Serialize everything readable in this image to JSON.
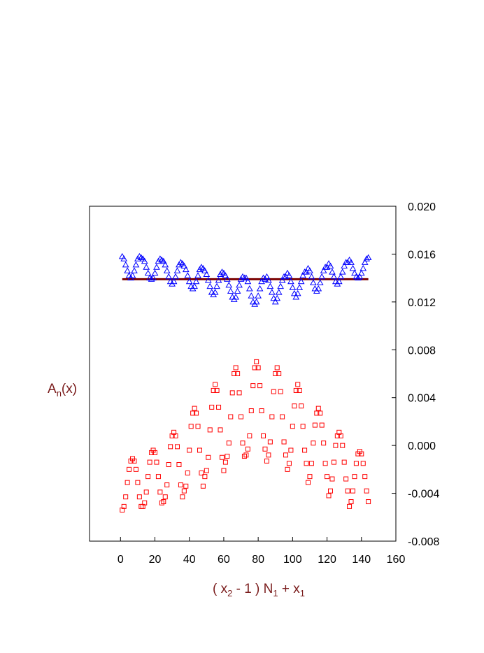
{
  "chart_data": {
    "type": "scatter",
    "xlabel": {
      "pre": "( x",
      "sub1": "2",
      "mid": " - 1 ) N",
      "sub2": "1",
      "mid2": " + x",
      "sub3": "1"
    },
    "ylabel": {
      "base": "A",
      "sub": "n",
      "tail": "(x)"
    },
    "xlim": [
      -18,
      160
    ],
    "ylim": [
      -0.008,
      0.02
    ],
    "x_ticks": [
      0,
      20,
      40,
      60,
      80,
      100,
      120,
      140,
      160
    ],
    "x_tick_labels": [
      "0",
      "20",
      "40",
      "60",
      "80",
      "100",
      "120",
      "140",
      "160"
    ],
    "y_ticks": [
      -0.008,
      -0.004,
      0.0,
      0.004,
      0.008,
      0.012,
      0.016,
      0.02
    ],
    "y_tick_labels": [
      "-0.008",
      "-0.004",
      "0.000",
      "0.004",
      "0.008",
      "0.012",
      "0.016",
      "0.020"
    ],
    "y_axis_side": "right",
    "grid": false,
    "reference_line": {
      "y": 0.0139,
      "x_range": [
        1,
        144
      ],
      "color": "#7a0000"
    },
    "series": [
      {
        "marker": "triangle",
        "color": "#0000ff",
        "values": [
          0.0158,
          0.0156,
          0.0151,
          0.0146,
          0.0142,
          0.014,
          0.0142,
          0.0146,
          0.0151,
          0.0156,
          0.0158,
          0.0157,
          0.0156,
          0.0154,
          0.0149,
          0.0144,
          0.014,
          0.0139,
          0.014,
          0.0144,
          0.0149,
          0.0154,
          0.0156,
          0.0155,
          0.0154,
          0.0151,
          0.0146,
          0.0141,
          0.0137,
          0.0135,
          0.0137,
          0.0141,
          0.0146,
          0.0151,
          0.0153,
          0.0152,
          0.015,
          0.0147,
          0.0142,
          0.0137,
          0.0133,
          0.0131,
          0.0133,
          0.0137,
          0.0142,
          0.0147,
          0.0149,
          0.0148,
          0.0146,
          0.0143,
          0.0138,
          0.0133,
          0.0128,
          0.0126,
          0.0128,
          0.0133,
          0.0138,
          0.0143,
          0.0145,
          0.0144,
          0.0142,
          0.0139,
          0.0134,
          0.0129,
          0.0124,
          0.0122,
          0.0124,
          0.0129,
          0.0134,
          0.0139,
          0.0141,
          0.014,
          0.014,
          0.0137,
          0.0131,
          0.0125,
          0.012,
          0.0118,
          0.012,
          0.0125,
          0.0131,
          0.0137,
          0.014,
          0.0139,
          0.0141,
          0.0138,
          0.0133,
          0.0128,
          0.0123,
          0.012,
          0.0123,
          0.0128,
          0.0133,
          0.0138,
          0.0141,
          0.0141,
          0.0144,
          0.0142,
          0.0137,
          0.0132,
          0.0127,
          0.0124,
          0.0127,
          0.0132,
          0.0137,
          0.0142,
          0.0145,
          0.0145,
          0.0148,
          0.0146,
          0.0141,
          0.0136,
          0.0131,
          0.0129,
          0.0131,
          0.0136,
          0.0141,
          0.0146,
          0.0149,
          0.0149,
          0.0152,
          0.015,
          0.0145,
          0.0141,
          0.0137,
          0.0135,
          0.0137,
          0.0141,
          0.0145,
          0.015,
          0.0153,
          0.0153,
          0.0155,
          0.0153,
          0.0148,
          0.0144,
          0.0141,
          0.014,
          0.0141,
          0.0144,
          0.0148,
          0.0153,
          0.0156,
          0.0157
        ]
      },
      {
        "marker": "square",
        "color": "#ff0000",
        "values": [
          -0.0054,
          -0.0051,
          -0.0043,
          -0.0031,
          -0.002,
          -0.0013,
          -0.0011,
          -0.0013,
          -0.002,
          -0.0031,
          -0.0043,
          -0.0051,
          -0.0051,
          -0.0048,
          -0.0039,
          -0.0026,
          -0.0014,
          -0.0006,
          -0.0004,
          -0.0006,
          -0.0014,
          -0.0026,
          -0.0039,
          -0.0048,
          -0.0047,
          -0.0043,
          -0.0033,
          -0.0016,
          -0.0001,
          0.0008,
          0.0011,
          0.0008,
          -0.0001,
          -0.0016,
          -0.0033,
          -0.0043,
          -0.0038,
          -0.0034,
          -0.0023,
          -0.0004,
          0.0016,
          0.0027,
          0.0031,
          0.0027,
          0.0016,
          -0.0004,
          -0.0023,
          -0.0034,
          -0.0026,
          -0.0021,
          -0.001,
          0.0013,
          0.0032,
          0.0046,
          0.0051,
          0.0046,
          0.0032,
          0.0013,
          -0.001,
          -0.0021,
          -0.0014,
          -0.0009,
          0.0002,
          0.0024,
          0.0044,
          0.006,
          0.0065,
          0.006,
          0.0044,
          0.0024,
          0.0002,
          -0.0009,
          -0.0008,
          -0.0003,
          0.0008,
          0.0029,
          0.005,
          0.0065,
          0.007,
          0.0065,
          0.005,
          0.0029,
          0.0008,
          -0.0003,
          -0.0013,
          -0.0008,
          0.0003,
          0.0024,
          0.0045,
          0.006,
          0.0065,
          0.006,
          0.0045,
          0.0024,
          0.0003,
          -0.0008,
          -0.002,
          -0.0015,
          -0.0004,
          0.0016,
          0.0033,
          0.0046,
          0.0051,
          0.0046,
          0.0033,
          0.0016,
          -0.0004,
          -0.0015,
          -0.0031,
          -0.0026,
          -0.0015,
          0.0002,
          0.0017,
          0.0027,
          0.0031,
          0.0027,
          0.0017,
          0.0002,
          -0.0015,
          -0.0026,
          -0.0042,
          -0.0038,
          -0.0028,
          -0.0014,
          0.0,
          0.0008,
          0.0011,
          0.0008,
          0.0,
          -0.0014,
          -0.0028,
          -0.0038,
          -0.0051,
          -0.0047,
          -0.0038,
          -0.0026,
          -0.0015,
          -0.0007,
          -0.0005,
          -0.0007,
          -0.0015,
          -0.0026,
          -0.0038,
          -0.0047
        ]
      }
    ]
  }
}
